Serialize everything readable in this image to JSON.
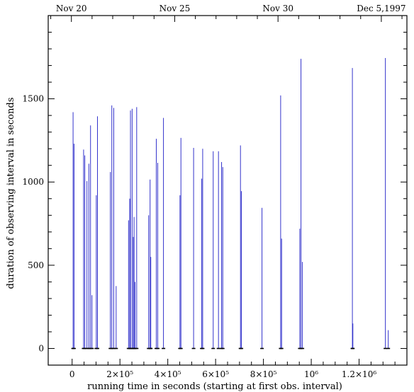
{
  "chart_data": {
    "type": "bar",
    "title": "",
    "xlabel": "running time  in seconds (starting at first obs. interval)",
    "ylabel": "duration of observing interval in seconds",
    "xlim": [
      -100000,
      1400000
    ],
    "ylim": [
      -100,
      2000
    ],
    "x_ticks": [
      {
        "value": 0,
        "label": "0"
      },
      {
        "value": 200000,
        "label": "2×10⁵"
      },
      {
        "value": 400000,
        "label": "4×10⁵"
      },
      {
        "value": 600000,
        "label": "6×10⁵"
      },
      {
        "value": 800000,
        "label": "8×10⁵"
      },
      {
        "value": 1000000,
        "label": "10⁶"
      },
      {
        "value": 1200000,
        "label": "1.2×10⁶"
      }
    ],
    "y_ticks": [
      {
        "value": 0,
        "label": "0"
      },
      {
        "value": 500,
        "label": "500"
      },
      {
        "value": 1000,
        "label": "1000"
      },
      {
        "value": 1500,
        "label": "1500"
      }
    ],
    "top_axis_dates": [
      {
        "value": -3000,
        "label": "Nov 20"
      },
      {
        "value": 429000,
        "label": "Nov 25"
      },
      {
        "value": 861000,
        "label": "Nov 30"
      },
      {
        "value": 1293000,
        "label": "Dec 5,1997"
      }
    ],
    "line_color": "#3333cc",
    "series": [
      {
        "values": [
          [
            4000,
            1420
          ],
          [
            8000,
            1230
          ],
          [
            48000,
            1195
          ],
          [
            53000,
            1160
          ],
          [
            62000,
            1005
          ],
          [
            70000,
            1110
          ],
          [
            77000,
            1340
          ],
          [
            83000,
            320
          ],
          [
            101000,
            920
          ],
          [
            106000,
            1395
          ],
          [
            160000,
            1060
          ],
          [
            166000,
            1460
          ],
          [
            174000,
            1445
          ],
          [
            184000,
            375
          ],
          [
            236000,
            770
          ],
          [
            241000,
            900
          ],
          [
            244000,
            1430
          ],
          [
            251000,
            1440
          ],
          [
            256000,
            670
          ],
          [
            259000,
            790
          ],
          [
            263000,
            400
          ],
          [
            270000,
            1450
          ],
          [
            320000,
            800
          ],
          [
            326000,
            1015
          ],
          [
            329000,
            550
          ],
          [
            352000,
            1260
          ],
          [
            358000,
            1115
          ],
          [
            382000,
            1385
          ],
          [
            451000,
            920
          ],
          [
            455000,
            1265
          ],
          [
            508000,
            1205
          ],
          [
            542000,
            1020
          ],
          [
            546000,
            1200
          ],
          [
            590000,
            1185
          ],
          [
            612000,
            1185
          ],
          [
            625000,
            1120
          ],
          [
            630000,
            1090
          ],
          [
            704000,
            1220
          ],
          [
            708000,
            945
          ],
          [
            794000,
            845
          ],
          [
            872000,
            1520
          ],
          [
            876000,
            660
          ],
          [
            952000,
            720
          ],
          [
            957000,
            1740
          ],
          [
            963000,
            520
          ],
          [
            1172000,
            1685
          ],
          [
            1174000,
            150
          ],
          [
            1310000,
            1745
          ],
          [
            1322000,
            110
          ]
        ]
      }
    ]
  }
}
